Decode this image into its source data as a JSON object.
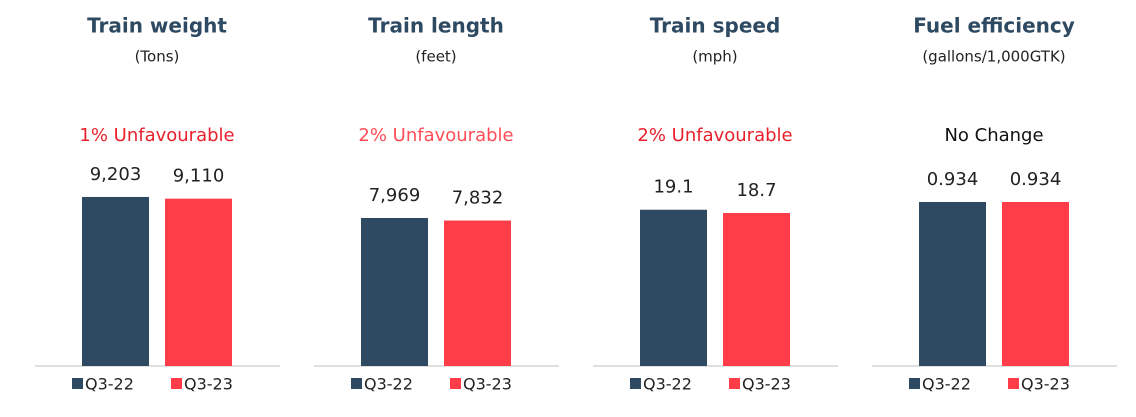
{
  "chart_data": [
    {
      "type": "bar",
      "title": "Train weight",
      "subtitle": "(Tons)",
      "annotation": "1% Unfavourable",
      "annotation_color": "#e8202c",
      "ylim": [
        0,
        11760
      ],
      "series": [
        {
          "name": "Q3-22",
          "color": "#2e4a62",
          "values": [
            9203
          ],
          "value_labels": [
            "9,203"
          ]
        },
        {
          "name": "Q3-23",
          "color": "#ff3d48",
          "values": [
            9110
          ],
          "value_labels": [
            "9,110"
          ]
        }
      ]
    },
    {
      "type": "bar",
      "title": "Train length",
      "subtitle": "(feet)",
      "annotation": "2% Unfavourable",
      "annotation_color": "#ff4d57",
      "ylim": [
        0,
        11630
      ],
      "series": [
        {
          "name": "Q3-22",
          "color": "#2e4a62",
          "values": [
            7969
          ],
          "value_labels": [
            "7,969"
          ]
        },
        {
          "name": "Q3-23",
          "color": "#ff3d48",
          "values": [
            7832
          ],
          "value_labels": [
            "7,832"
          ]
        }
      ]
    },
    {
      "type": "bar",
      "title": "Train speed",
      "subtitle": "(mph)",
      "annotation": "2% Unfavourable",
      "annotation_color": "#e8202c",
      "ylim": [
        0,
        26.4
      ],
      "series": [
        {
          "name": "Q3-22",
          "color": "#2e4a62",
          "values": [
            19.1
          ]
        },
        {
          "name": "Q3-23",
          "color": "#ff3d48",
          "values": [
            18.7
          ]
        }
      ]
    },
    {
      "type": "bar",
      "title": "Fuel efficiency",
      "subtitle": "(gallons/1,000GTK)",
      "annotation": "No Change",
      "annotation_color": "#111111",
      "ylim": [
        0,
        1.23
      ],
      "series": [
        {
          "name": "Q3-22",
          "color": "#2e4a62",
          "values": [
            0.934
          ]
        },
        {
          "name": "Q3-23",
          "color": "#ff3d48",
          "values": [
            0.934
          ]
        }
      ]
    }
  ]
}
